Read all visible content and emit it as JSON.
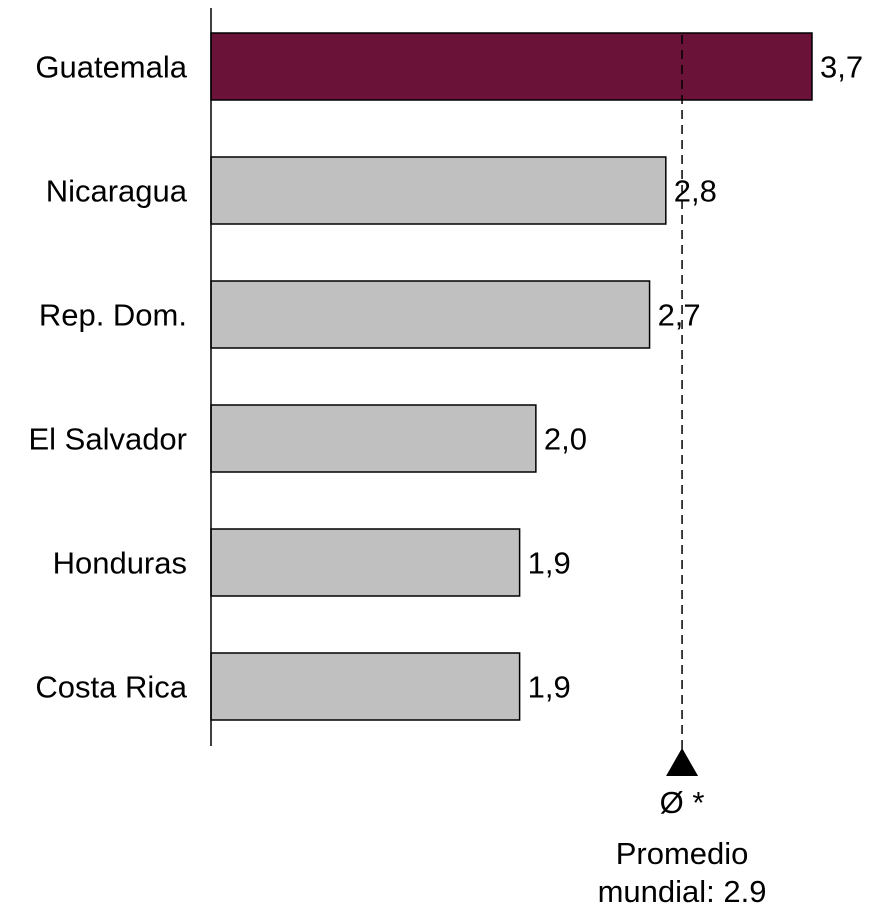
{
  "chart_data": {
    "type": "bar",
    "orientation": "horizontal",
    "categories": [
      "Guatemala",
      "Nicaragua",
      "Rep. Dom.",
      "El Salvador",
      "Honduras",
      "Costa Rica"
    ],
    "values": [
      3.7,
      2.8,
      2.7,
      2.0,
      1.9,
      1.9
    ],
    "value_labels": [
      "3,7",
      "2,8",
      "2,7",
      "2,0",
      "1,9",
      "1,9"
    ],
    "highlight_category": "Guatemala",
    "xlim": [
      0,
      3.7
    ],
    "grid": false,
    "reference_line": {
      "value": 2.9,
      "style": "dashed",
      "symbol_label": "Ø *",
      "label_line1": "Promedio",
      "label_line2": "mundial: 2.9"
    },
    "colors": {
      "highlight": "#6B1239",
      "default": "#C0C0C0",
      "outline": "#000000"
    }
  }
}
